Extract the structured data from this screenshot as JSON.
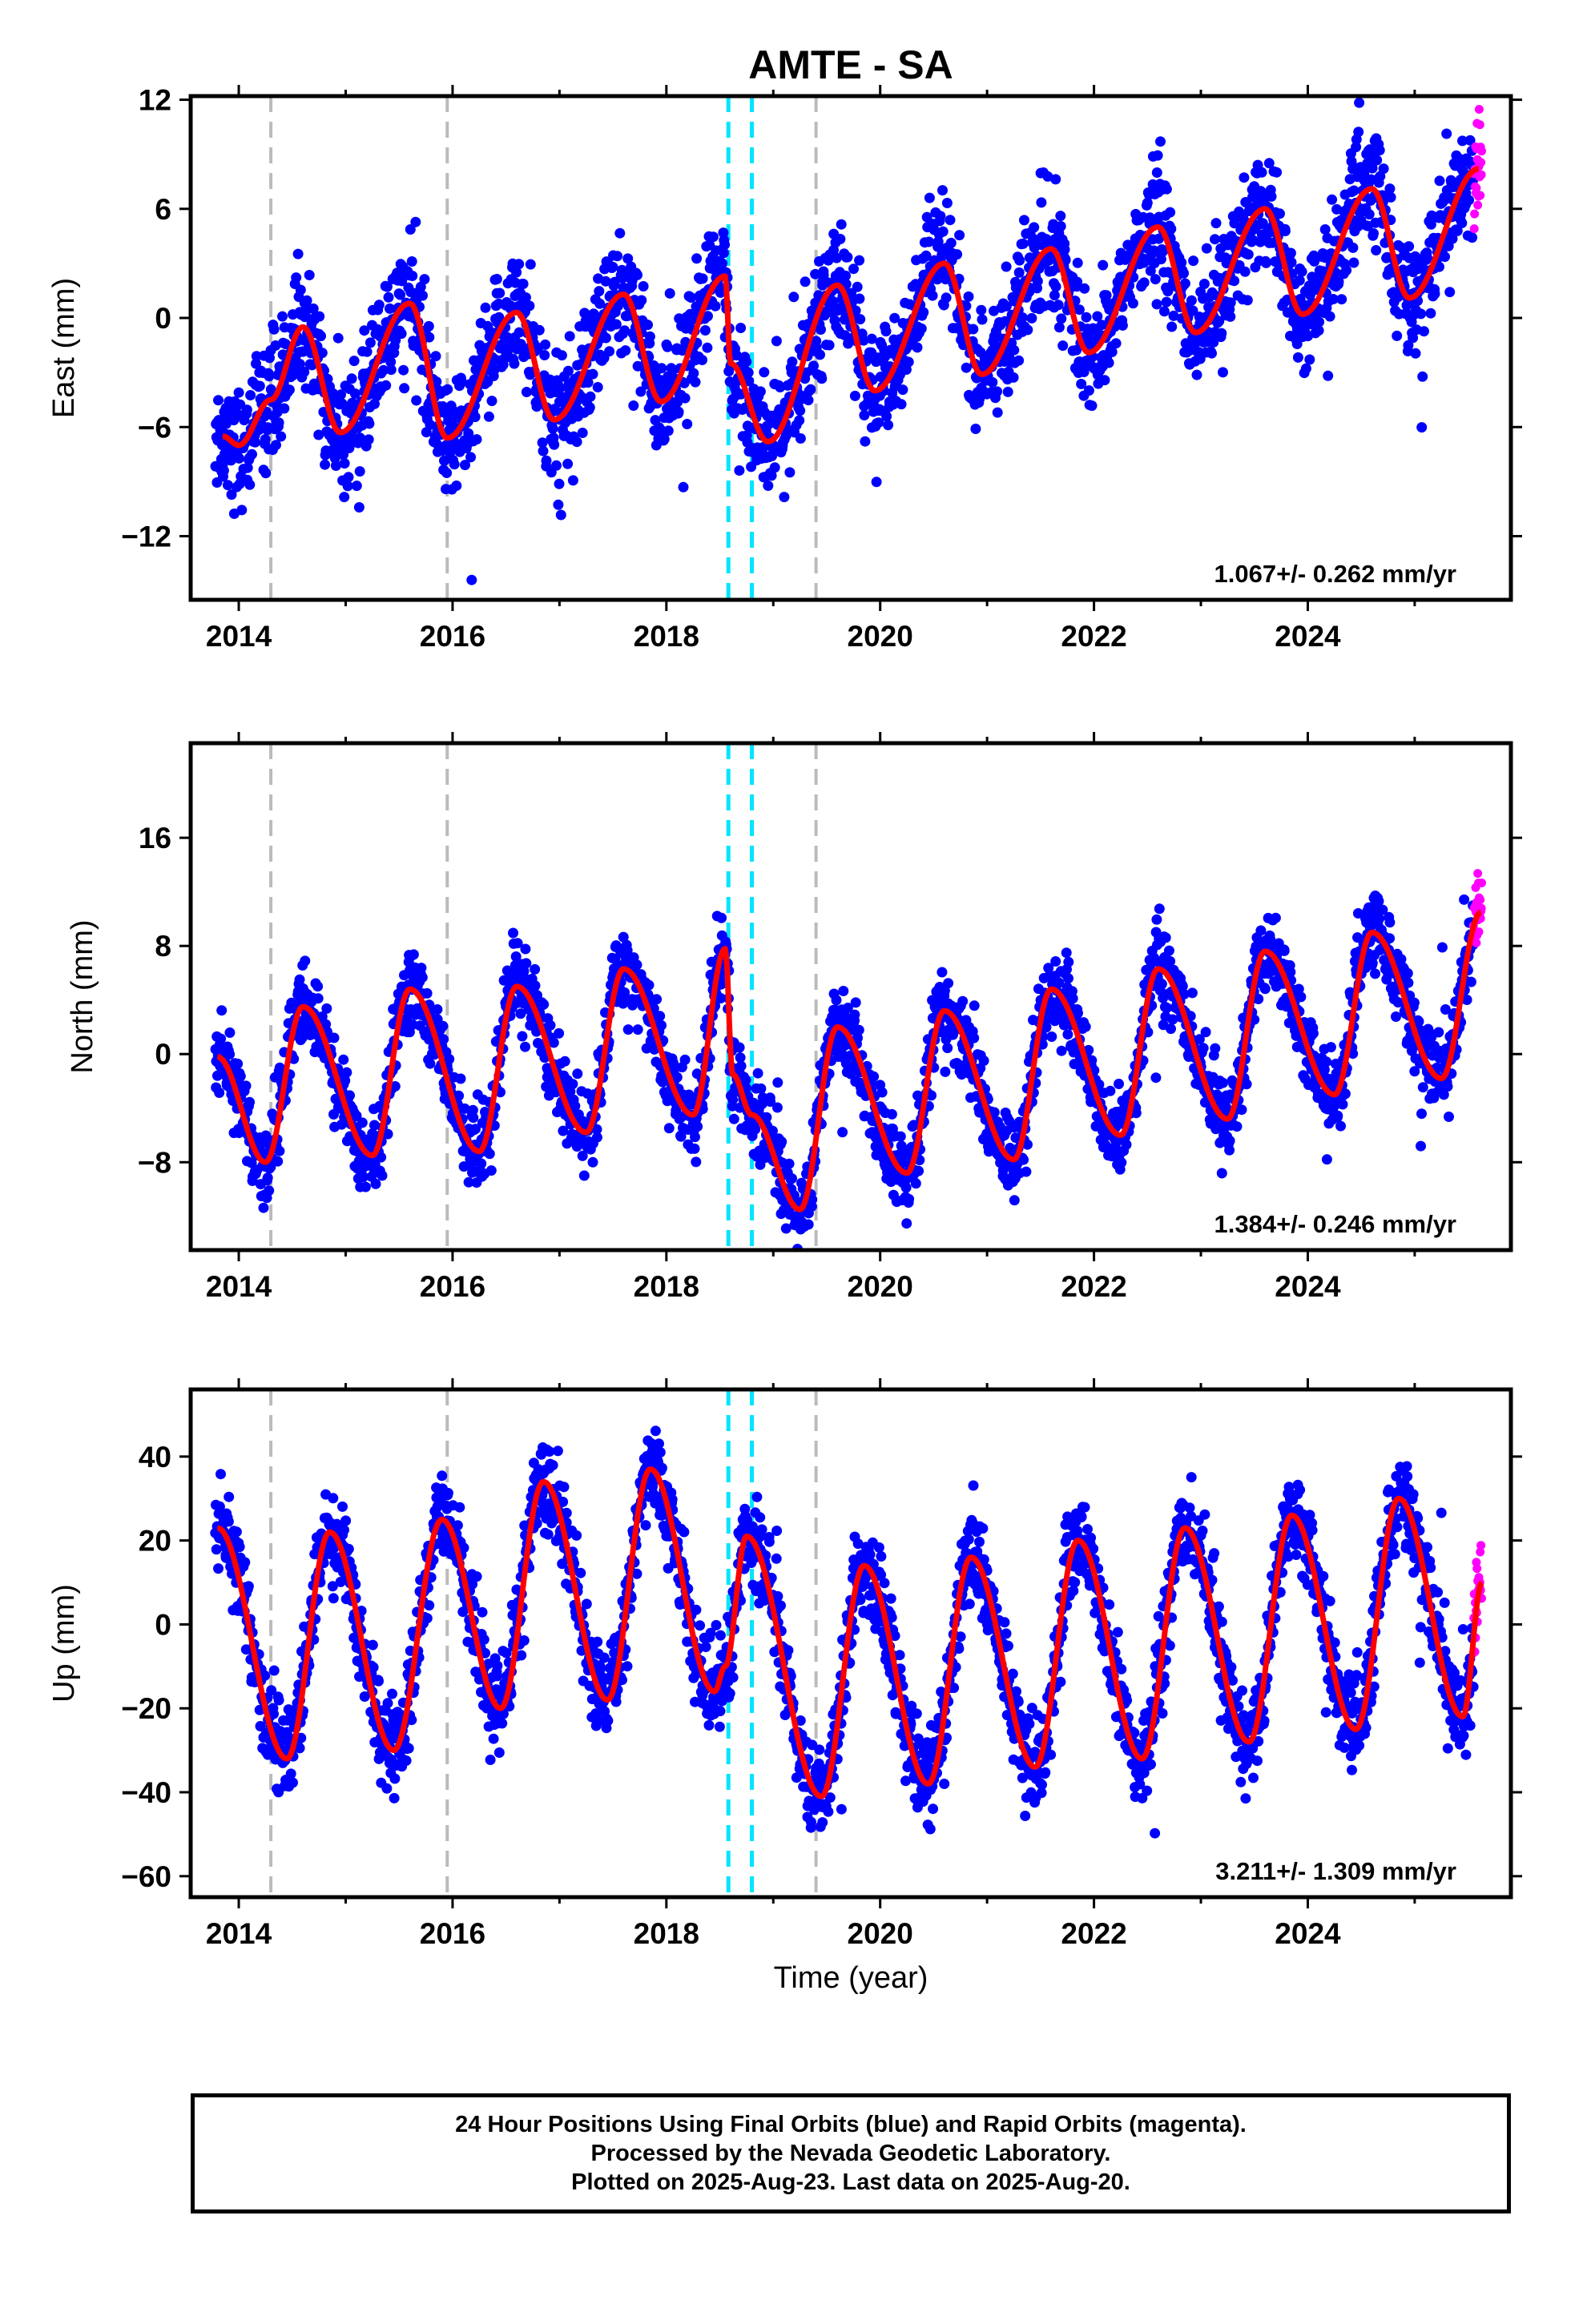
{
  "chart_data": {
    "type": "scatter",
    "title": "AMTE - SA",
    "xlabel": "Time (year)",
    "series_legend": {
      "final_orbits_color": "#0000ff",
      "rapid_orbits_color": "#ff00ff",
      "model_color": "#ff0000",
      "equipment_change_color": "#bbbbbb",
      "earthquake_color": "#00e5ff"
    },
    "x_range": [
      2013.55,
      2025.9
    ],
    "x_ticks": [
      "2014",
      "2016",
      "2018",
      "2020",
      "2022",
      "2024"
    ],
    "x_tick_values": [
      2014,
      2016,
      2018,
      2020,
      2022,
      2024
    ],
    "minor_x_tick_values": [
      2015,
      2017,
      2019,
      2021,
      2023,
      2025
    ],
    "data_start": 2013.78,
    "data_end": 2025.63,
    "rapid_start": 2025.55,
    "gray_dashed_lines": [
      2014.3,
      2015.95,
      2019.4
    ],
    "cyan_dashed_lines": [
      2018.58,
      2018.8
    ],
    "panels": [
      {
        "ylabel": "East (mm)",
        "y_range": [
          -15.5,
          12.2
        ],
        "y_ticks": [
          "12",
          "6",
          "0",
          "−6",
          "−12"
        ],
        "y_tick_values": [
          12,
          6,
          0,
          -6,
          -12
        ],
        "rate_label": "1.067+/- 0.262 mm/yr",
        "trend": 1.067,
        "intercept": -3.5,
        "amplitude": 3.0,
        "annual_phase": 0.62,
        "scatter_sd": 1.6,
        "model_points": [
          [
            2013.85,
            -6.5
          ],
          [
            2014.0,
            -7.0
          ],
          [
            2014.3,
            -4.5
          ],
          [
            2014.6,
            -0.5
          ],
          [
            2014.95,
            -6.3
          ],
          [
            2015.6,
            0.8
          ],
          [
            2015.95,
            -6.6
          ],
          [
            2016.6,
            0.3
          ],
          [
            2016.95,
            -5.6
          ],
          [
            2017.6,
            1.3
          ],
          [
            2017.95,
            -4.6
          ],
          [
            2018.55,
            2.3
          ],
          [
            2018.6,
            -2.5
          ],
          [
            2018.95,
            -6.8
          ],
          [
            2019.6,
            1.8
          ],
          [
            2019.95,
            -4.0
          ],
          [
            2020.6,
            3.0
          ],
          [
            2020.95,
            -3.1
          ],
          [
            2021.6,
            3.8
          ],
          [
            2021.95,
            -1.9
          ],
          [
            2022.6,
            5.0
          ],
          [
            2022.95,
            -0.8
          ],
          [
            2023.6,
            6.0
          ],
          [
            2023.95,
            0.2
          ],
          [
            2024.6,
            7.1
          ],
          [
            2024.95,
            1.1
          ],
          [
            2025.6,
            8.2
          ]
        ]
      },
      {
        "ylabel": "North (mm)",
        "y_range": [
          -14.5,
          23.0
        ],
        "y_ticks": [
          "16",
          "8",
          "0",
          "−8"
        ],
        "y_tick_values": [
          16,
          8,
          0,
          -8
        ],
        "rate_label": "1.384+/- 0.246 mm/yr",
        "trend": 1.384,
        "intercept": -1.8,
        "amplitude": 5.5,
        "annual_phase": 0.33,
        "scatter_sd": 1.5,
        "model_points": [
          [
            2013.8,
            -0.2
          ],
          [
            2014.25,
            -8.0
          ],
          [
            2014.6,
            3.5
          ],
          [
            2015.25,
            -7.5
          ],
          [
            2015.6,
            4.8
          ],
          [
            2016.25,
            -7.2
          ],
          [
            2016.6,
            5.0
          ],
          [
            2017.25,
            -5.8
          ],
          [
            2017.6,
            6.3
          ],
          [
            2018.25,
            -4.5
          ],
          [
            2018.55,
            7.8
          ],
          [
            2018.62,
            -1.5
          ],
          [
            2018.8,
            -4.5
          ],
          [
            2019.25,
            -11.5
          ],
          [
            2019.6,
            2.0
          ],
          [
            2020.25,
            -8.8
          ],
          [
            2020.6,
            3.2
          ],
          [
            2021.25,
            -7.8
          ],
          [
            2021.6,
            4.8
          ],
          [
            2022.25,
            -6.0
          ],
          [
            2022.6,
            6.3
          ],
          [
            2023.25,
            -4.8
          ],
          [
            2023.6,
            7.6
          ],
          [
            2024.25,
            -3.0
          ],
          [
            2024.6,
            9.0
          ],
          [
            2025.25,
            -1.8
          ],
          [
            2025.62,
            10.5
          ]
        ]
      },
      {
        "ylabel": "Up (mm)",
        "y_range": [
          -65,
          56
        ],
        "y_ticks": [
          "40",
          "20",
          "0",
          "−20",
          "−40",
          "−60"
        ],
        "y_tick_values": [
          40,
          20,
          0,
          -20,
          -40,
          -60
        ],
        "rate_label": "3.211+/- 1.309 mm/yr",
        "trend": 3.211,
        "intercept": -5,
        "amplitude": 28,
        "annual_phase": 0.85,
        "scatter_sd": 5.5,
        "model_points": [
          [
            2013.8,
            23
          ],
          [
            2014.45,
            -32
          ],
          [
            2014.85,
            22
          ],
          [
            2015.45,
            -30
          ],
          [
            2015.9,
            25
          ],
          [
            2016.45,
            -20
          ],
          [
            2016.85,
            34
          ],
          [
            2017.45,
            -18
          ],
          [
            2017.85,
            37
          ],
          [
            2018.45,
            -16
          ],
          [
            2018.55,
            -10
          ],
          [
            2018.75,
            21
          ],
          [
            2019.45,
            -41
          ],
          [
            2019.85,
            14
          ],
          [
            2020.45,
            -38
          ],
          [
            2020.85,
            16
          ],
          [
            2021.45,
            -34
          ],
          [
            2021.85,
            20
          ],
          [
            2022.45,
            -32
          ],
          [
            2022.85,
            23
          ],
          [
            2023.45,
            -28
          ],
          [
            2023.85,
            26
          ],
          [
            2024.45,
            -25
          ],
          [
            2024.85,
            30
          ],
          [
            2025.45,
            -22
          ],
          [
            2025.63,
            10
          ]
        ]
      }
    ]
  },
  "footer": {
    "line1": "24 Hour Positions Using Final Orbits (blue) and Rapid Orbits (magenta).",
    "line2": "Processed by the Nevada Geodetic Laboratory.",
    "line3": "Plotted on 2025-Aug-23. Last data on 2025-Aug-20."
  }
}
